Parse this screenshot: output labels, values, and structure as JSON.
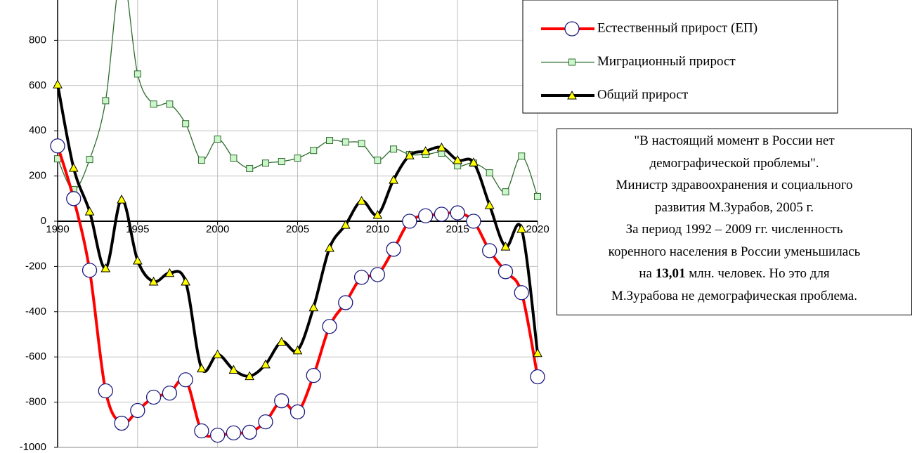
{
  "chart_data": {
    "type": "line",
    "x": [
      1990,
      1991,
      1992,
      1993,
      1994,
      1995,
      1996,
      1997,
      1998,
      1999,
      2000,
      2001,
      2002,
      2003,
      2004,
      2005,
      2006,
      2007,
      2008,
      2009,
      2010,
      2011,
      2012,
      2013,
      2014,
      2015,
      2016,
      2017,
      2018,
      2019,
      2020
    ],
    "series": [
      {
        "name": "Естественный прирост (ЕП)",
        "color": "#ff0000",
        "marker": "circle",
        "values": [
          333,
          100,
          -217,
          -750,
          -893,
          -837,
          -778,
          -760,
          -701,
          -927,
          -946,
          -936,
          -933,
          -887,
          -794,
          -843,
          -682,
          -465,
          -360,
          -248,
          -236,
          -124,
          0,
          24,
          31,
          37,
          0,
          -130,
          -223,
          -316,
          -688
        ]
      },
      {
        "name": "Миграционный прирост",
        "color": "#2e6b2e",
        "marker": "square",
        "values": [
          276,
          140,
          273,
          533,
          1100,
          651,
          518,
          518,
          431,
          270,
          363,
          279,
          233,
          257,
          264,
          279,
          313,
          357,
          350,
          344,
          270,
          319,
          295,
          295,
          301,
          245,
          257,
          214,
          130,
          288,
          109
        ]
      },
      {
        "name": "Общий прирост",
        "color": "#000000",
        "marker": "triangle",
        "values": [
          605,
          236,
          43,
          -208,
          96,
          -174,
          -267,
          -229,
          -267,
          -651,
          -589,
          -657,
          -685,
          -633,
          -533,
          -571,
          -381,
          -118,
          -16,
          90,
          28,
          183,
          291,
          310,
          326,
          270,
          260,
          71,
          -112,
          -34,
          -583
        ]
      }
    ],
    "xlim": [
      1990,
      2020
    ],
    "xticks": [
      1990,
      1995,
      2000,
      2005,
      2010,
      2015,
      2020
    ],
    "ylim": [
      -1000,
      1000
    ],
    "yticks": [
      -1000,
      -800,
      -600,
      -400,
      -200,
      0,
      200,
      400,
      600,
      800
    ],
    "grid": true,
    "annotation": {
      "lines": [
        [
          "\"В настоящий момент в России нет"
        ],
        [
          "демографической проблемы\"."
        ],
        [
          "Министр здравоохранения и социального"
        ],
        [
          "развития М.Зурабов, 2005 г."
        ],
        [
          "За период 1992 – 2009 гг. численность"
        ],
        [
          "коренного населения в России уменьшилась"
        ],
        [
          "на ",
          "13,01",
          " млн. человек. Но это для"
        ],
        [
          "М.Зурабова не демографическая проблема."
        ]
      ]
    }
  }
}
